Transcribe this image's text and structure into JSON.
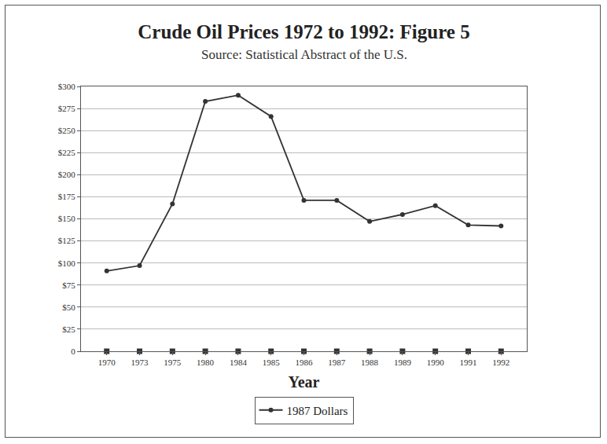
{
  "chart_data": {
    "type": "line",
    "title": "Crude Oil Prices 1972 to 1992: Figure 5",
    "subtitle": "Source: Statistical Abstract of the U.S.",
    "x_label": "Year",
    "categories": [
      "1970",
      "1973",
      "1975",
      "1980",
      "1984",
      "1985",
      "1986",
      "1987",
      "1988",
      "1989",
      "1990",
      "1991",
      "1992"
    ],
    "series": [
      {
        "name": "1987 Dollars",
        "color": "#333333",
        "marker": "circle",
        "line_style": "solid",
        "values": [
          91,
          97,
          167,
          283,
          290,
          266,
          171,
          171,
          147,
          155,
          165,
          143,
          142
        ]
      },
      {
        "color": "#333333",
        "marker": "square",
        "line_style": "none",
        "values": [
          0,
          0,
          0,
          0,
          0,
          0,
          0,
          0,
          0,
          0,
          0,
          0,
          0
        ]
      }
    ],
    "ylim": [
      0,
      300
    ],
    "yticks": [
      0,
      {
        "value": 25,
        "label": "$25"
      },
      {
        "value": 50,
        "label": "$50"
      },
      {
        "value": 75,
        "label": "$75"
      },
      {
        "value": 100,
        "label": "$100"
      },
      {
        "value": 125,
        "label": "$125"
      },
      {
        "value": 150,
        "label": "$150"
      },
      {
        "value": 175,
        "label": "$175"
      },
      {
        "value": 200,
        "label": "$200"
      },
      {
        "value": 225,
        "label": "$225"
      },
      {
        "value": 250,
        "label": "$250"
      },
      {
        "value": 275,
        "label": "$275"
      },
      {
        "value": 300,
        "label": "$300"
      }
    ],
    "grid": true,
    "legend": "bottom"
  }
}
